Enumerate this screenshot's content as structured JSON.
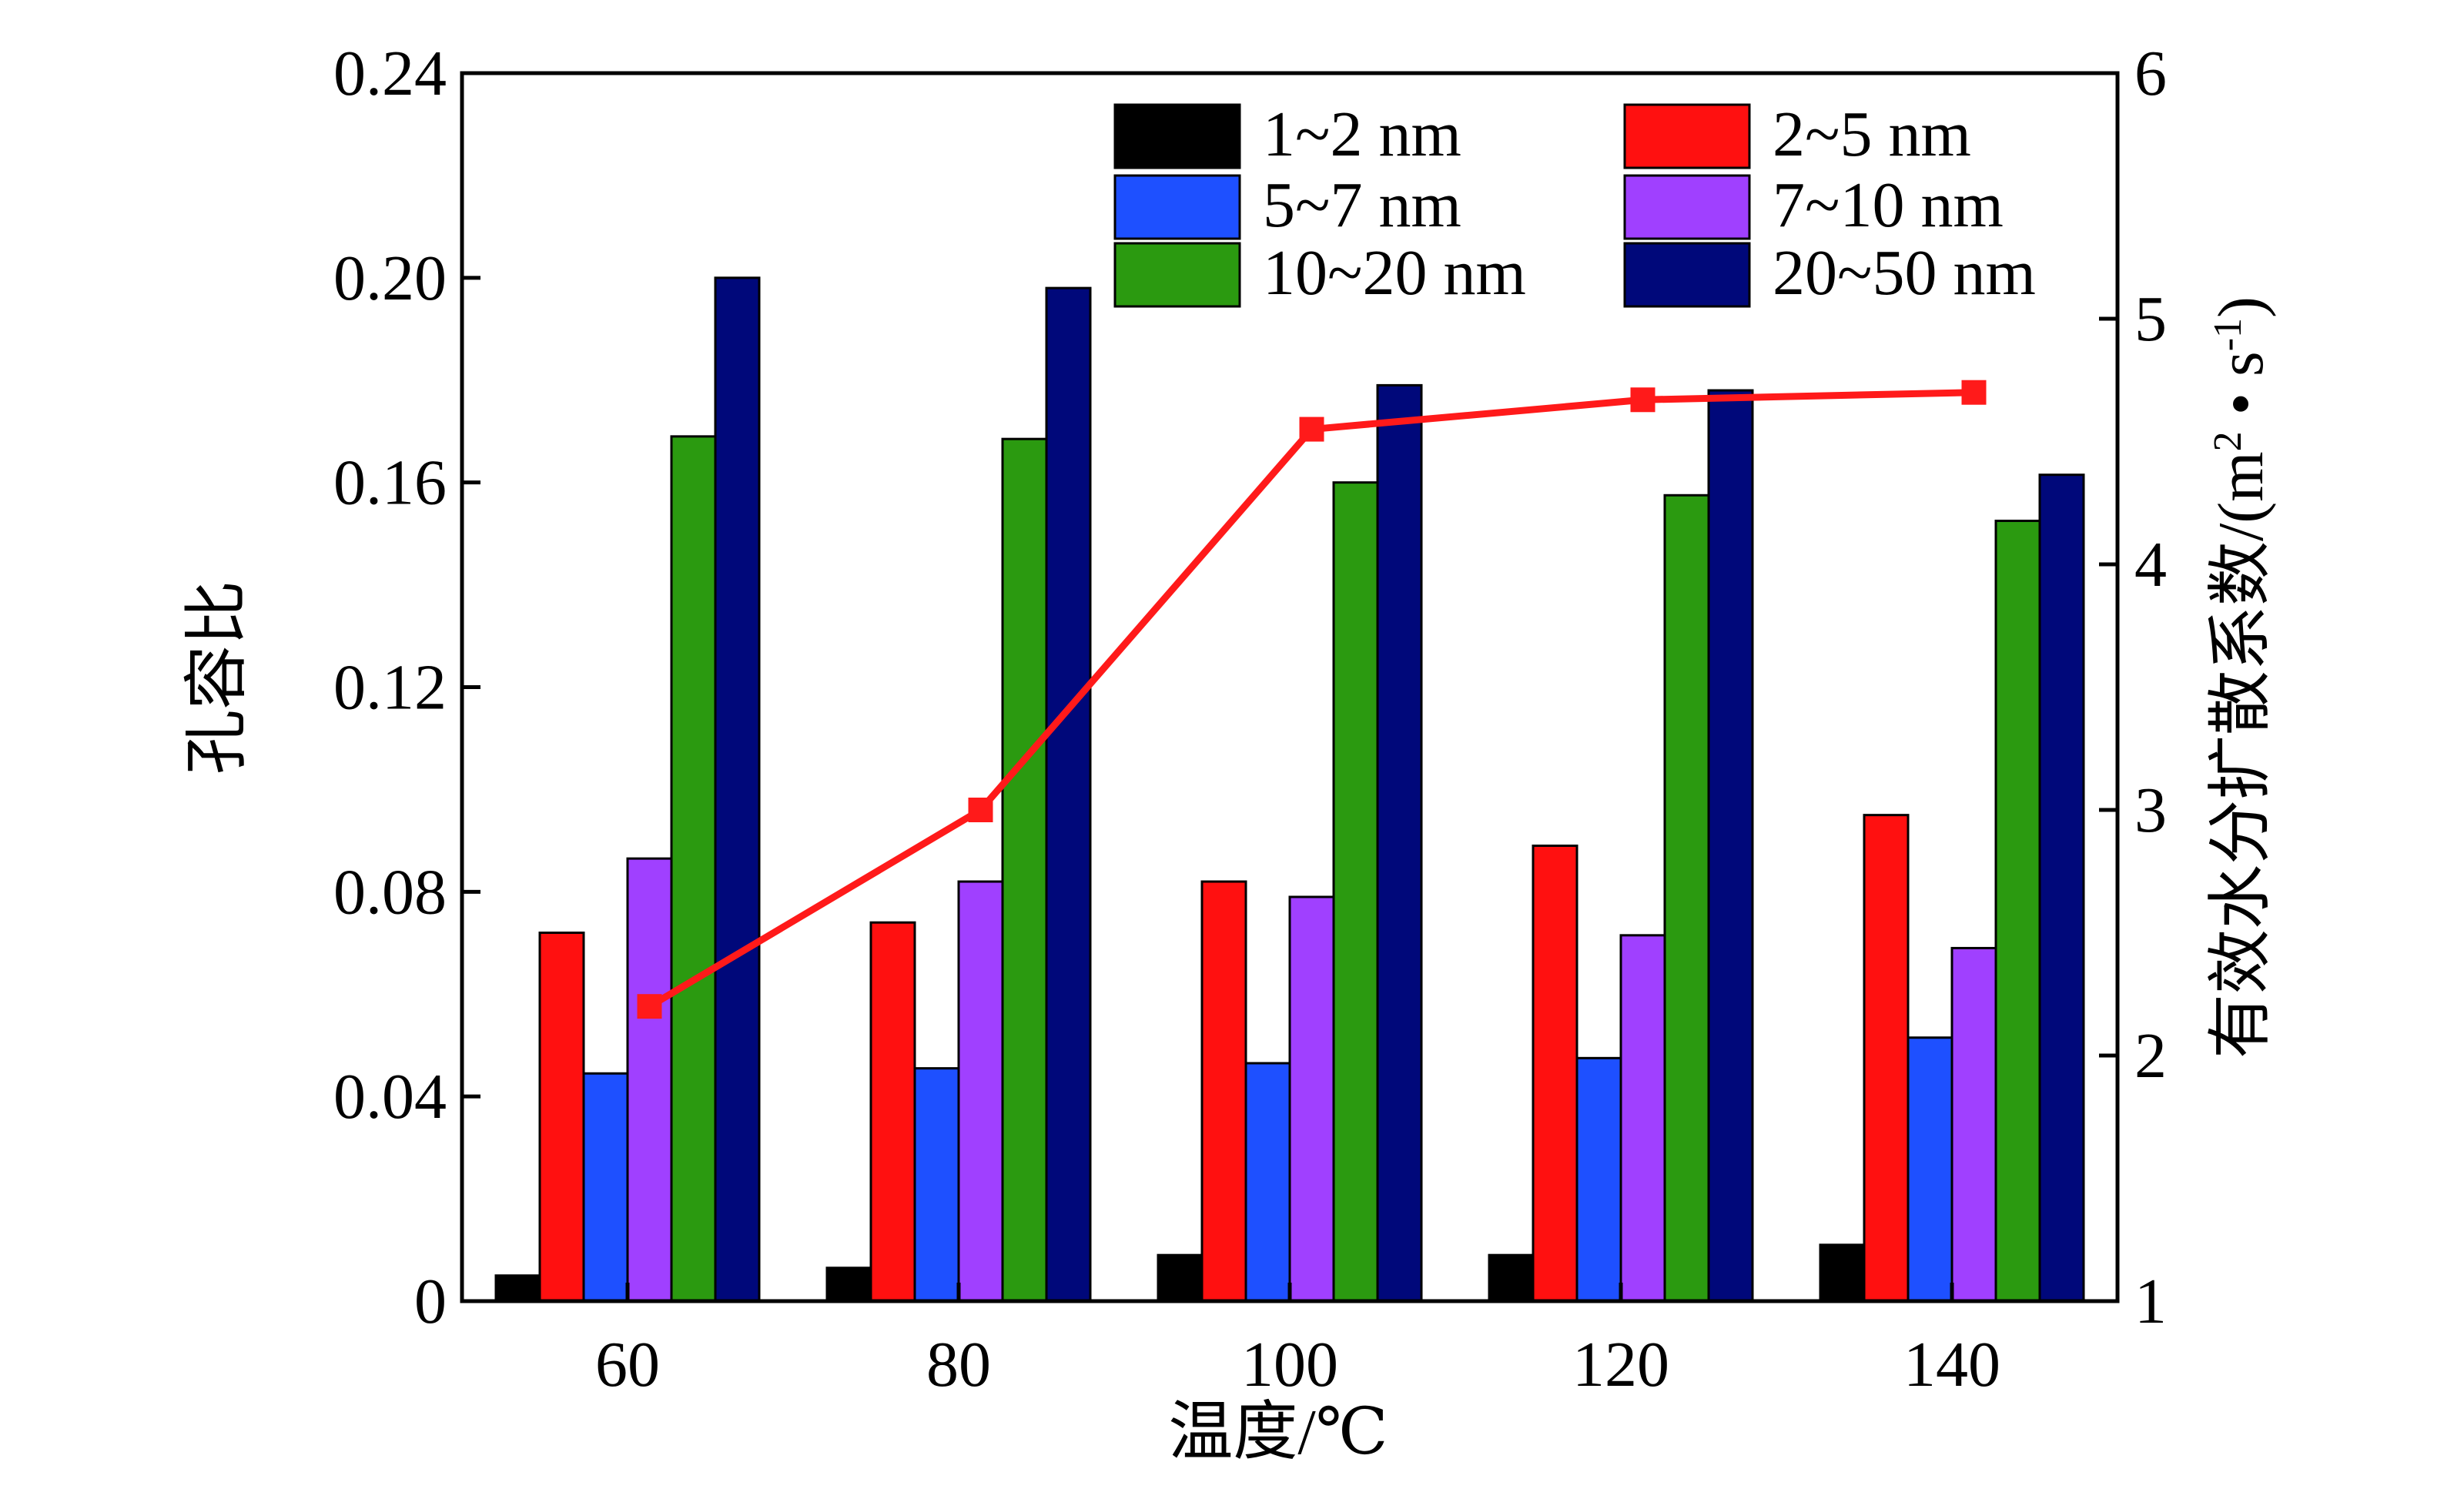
{
  "chart_data": {
    "type": "bar",
    "xlabel": "温度/℃",
    "ylabel": "孔容比",
    "y2label": "有效水分扩散系数/(m²·s⁻¹)",
    "y2label_parts": {
      "main": "有效水分扩散系数/(m",
      "sup1": "2",
      "mid": " • s",
      "sup2": "-1",
      "end": ")"
    },
    "categories": [
      "60",
      "80",
      "100",
      "120",
      "140"
    ],
    "ylim": [
      0,
      0.24
    ],
    "y_ticks": [
      "0",
      "0.04",
      "0.08",
      "0.12",
      "0.16",
      "0.20",
      "0.24"
    ],
    "y2lim": [
      1,
      6
    ],
    "y2_ticks": [
      "1",
      "2",
      "3",
      "4",
      "5",
      "6"
    ],
    "series": [
      {
        "name": "1~2 nm",
        "color": "#000000",
        "values": [
          0.005,
          0.0065,
          0.009,
          0.009,
          0.011
        ]
      },
      {
        "name": "2~5 nm",
        "color": "#ff1010",
        "values": [
          0.072,
          0.074,
          0.082,
          0.089,
          0.095
        ]
      },
      {
        "name": "5~7 nm",
        "color": "#1e50ff",
        "values": [
          0.0445,
          0.0455,
          0.0465,
          0.0475,
          0.0515
        ]
      },
      {
        "name": "7~10 nm",
        "color": "#a040ff",
        "values": [
          0.0865,
          0.082,
          0.079,
          0.0715,
          0.069
        ]
      },
      {
        "name": "10~20 nm",
        "color": "#2b9a10",
        "values": [
          0.169,
          0.1685,
          0.16,
          0.1575,
          0.1525
        ]
      },
      {
        "name": "20~50 nm",
        "color": "#00087a",
        "values": [
          0.2,
          0.198,
          0.179,
          0.178,
          0.1615
        ]
      }
    ],
    "line": {
      "axis": "right",
      "color": "#ff1a1a",
      "values": [
        2.2,
        3.0,
        4.55,
        4.67,
        4.7
      ]
    },
    "legend_position": "top-right",
    "grid": false
  }
}
